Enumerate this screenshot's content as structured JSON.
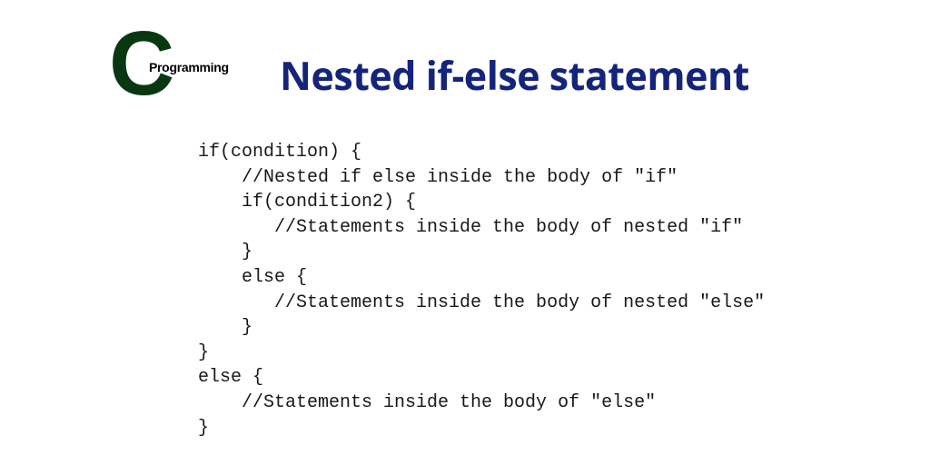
{
  "logo": {
    "letter": "C",
    "text": "Programming",
    "letter_color": "#083812",
    "text_color": "#000000"
  },
  "title": {
    "text": "Nested if-else statement",
    "color": "#13247a",
    "fontsize": 43,
    "fontweight": 700
  },
  "code": {
    "font_family": "Courier New, monospace",
    "fontsize": 20,
    "color": "#181818",
    "lines": [
      "if(condition) {",
      "    //Nested if else inside the body of \"if\"",
      "    if(condition2) {",
      "       //Statements inside the body of nested \"if\"",
      "    }",
      "    else {",
      "       //Statements inside the body of nested \"else\"",
      "    }",
      "}",
      "else {",
      "    //Statements inside the body of \"else\"",
      "}"
    ]
  },
  "background_color": "#ffffff"
}
